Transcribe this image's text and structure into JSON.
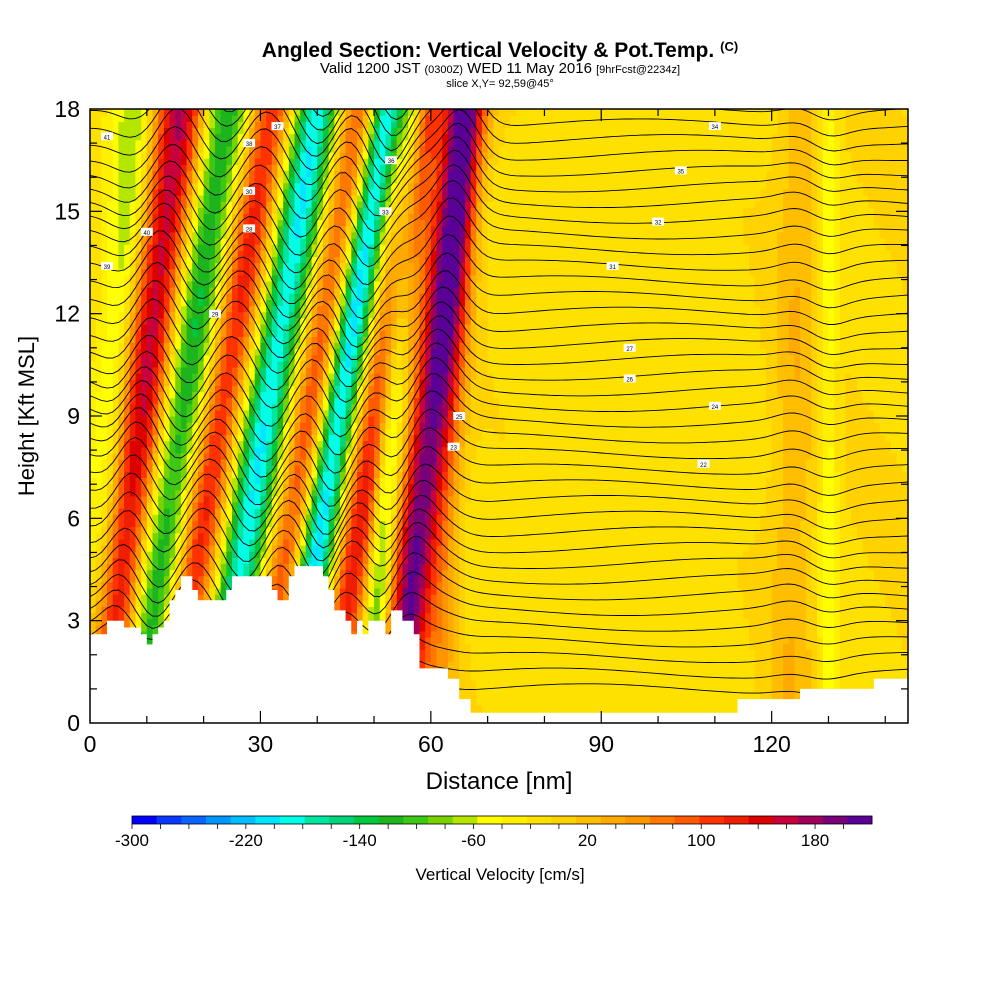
{
  "chart_data": {
    "type": "heatmap",
    "title": "Angled Section: Vertical Velocity & Pot.Temp.",
    "title_tag": "(C)",
    "subtitle": {
      "valid_prefix": "Valid 1200 JST",
      "utc": "(0300Z)",
      "date": "WED 11 May 2016",
      "forecast": "[9hrFcst@2234z]"
    },
    "slice_label": "slice X,Y= 92,59@45°",
    "xlabel": "Distance [nm]",
    "ylabel": "Height [Kft MSL]",
    "xlim": [
      0,
      144
    ],
    "ylim": [
      0,
      18
    ],
    "x_ticks": [
      "0",
      "30",
      "60",
      "90",
      "120"
    ],
    "x_tick_values": [
      0,
      30,
      60,
      90,
      120
    ],
    "y_ticks": [
      "0",
      "3",
      "6",
      "9",
      "12",
      "15",
      "18"
    ],
    "y_tick_values": [
      0,
      3,
      6,
      9,
      12,
      15,
      18
    ],
    "colorbar": {
      "label": "Vertical Velocity [cm/s]",
      "range": [
        -300,
        220
      ],
      "step": 20,
      "tick_labels": [
        "-300",
        "-220",
        "-140",
        "-60",
        "20",
        "100",
        "180"
      ],
      "tick_values": [
        -300,
        -220,
        -140,
        -60,
        20,
        100,
        180
      ],
      "colors": [
        "#0000ff",
        "#0a37ff",
        "#0a64ff",
        "#0096ff",
        "#00beff",
        "#00e6ff",
        "#00ffe6",
        "#00e6a0",
        "#00d278",
        "#00c83c",
        "#1eb41e",
        "#3cc814",
        "#78d200",
        "#b4e600",
        "#ffff00",
        "#fff000",
        "#ffe100",
        "#ffd200",
        "#ffbe00",
        "#ffaa00",
        "#ff9600",
        "#ff7800",
        "#ff5a00",
        "#ff3200",
        "#f01e00",
        "#dc0000",
        "#c8003c",
        "#a0005a",
        "#780078",
        "#5a0096"
      ]
    },
    "terrain_kft": [
      [
        0,
        2.6
      ],
      [
        3,
        2.6
      ],
      [
        3,
        3.0
      ],
      [
        6,
        3.0
      ],
      [
        6,
        2.8
      ],
      [
        9,
        2.8
      ],
      [
        9,
        2.6
      ],
      [
        10,
        2.6
      ],
      [
        10,
        2.3
      ],
      [
        11,
        2.3
      ],
      [
        11,
        2.6
      ],
      [
        12,
        2.6
      ],
      [
        12,
        2.8
      ],
      [
        13,
        2.8
      ],
      [
        13,
        3.0
      ],
      [
        14,
        3.0
      ],
      [
        14,
        3.6
      ],
      [
        15,
        3.6
      ],
      [
        15,
        3.9
      ],
      [
        16,
        3.9
      ],
      [
        16,
        4.3
      ],
      [
        18,
        4.3
      ],
      [
        18,
        3.9
      ],
      [
        19,
        3.9
      ],
      [
        19,
        3.6
      ],
      [
        24,
        3.6
      ],
      [
        24,
        3.9
      ],
      [
        25,
        3.9
      ],
      [
        25,
        4.3
      ],
      [
        32,
        4.3
      ],
      [
        32,
        3.9
      ],
      [
        33,
        3.9
      ],
      [
        33,
        3.6
      ],
      [
        35,
        3.6
      ],
      [
        35,
        4.3
      ],
      [
        36,
        4.3
      ],
      [
        36,
        4.6
      ],
      [
        41,
        4.6
      ],
      [
        41,
        4.3
      ],
      [
        42,
        4.3
      ],
      [
        42,
        3.9
      ],
      [
        43,
        3.9
      ],
      [
        43,
        3.3
      ],
      [
        45,
        3.3
      ],
      [
        45,
        3.0
      ],
      [
        46,
        3.0
      ],
      [
        46,
        2.6
      ],
      [
        47,
        2.6
      ],
      [
        47,
        3.0
      ],
      [
        48,
        3.0
      ],
      [
        48,
        2.6
      ],
      [
        49,
        2.6
      ],
      [
        49,
        3.0
      ],
      [
        52,
        3.0
      ],
      [
        52,
        2.6
      ],
      [
        53,
        2.6
      ],
      [
        53,
        3.3
      ],
      [
        55,
        3.3
      ],
      [
        55,
        3.0
      ],
      [
        57,
        3.0
      ],
      [
        57,
        2.6
      ],
      [
        58,
        2.6
      ],
      [
        58,
        1.6
      ],
      [
        63,
        1.6
      ],
      [
        63,
        1.3
      ],
      [
        65,
        1.3
      ],
      [
        65,
        0.7
      ],
      [
        67,
        0.7
      ],
      [
        67,
        0.3
      ],
      [
        114,
        0.3
      ],
      [
        114,
        0.7
      ],
      [
        125,
        0.7
      ],
      [
        125,
        1.0
      ],
      [
        138,
        1.0
      ],
      [
        138,
        1.3
      ],
      [
        144,
        1.3
      ]
    ],
    "updraft_bands": [
      {
        "x0": 2,
        "x1": 16,
        "w": 200,
        "width_nm": 3.2
      },
      {
        "x0": 14,
        "x1": 32,
        "w": 150,
        "width_nm": 2.6
      },
      {
        "x0": 30,
        "x1": 48,
        "w": 140,
        "width_nm": 2.5
      },
      {
        "x0": 42,
        "x1": 59,
        "w": 160,
        "width_nm": 2.4
      },
      {
        "x0": 54,
        "x1": 66,
        "w": 240,
        "width_nm": 2.6
      },
      {
        "x0": 61,
        "x1": 66,
        "w": 60,
        "width_nm": 2.0
      },
      {
        "x0": 123,
        "x1": 125,
        "w": 40,
        "width_nm": 3.0
      }
    ],
    "downdraft_bands": [
      {
        "x0": 0,
        "x1": 8,
        "w": -80,
        "width_nm": 2.5
      },
      {
        "x0": 8,
        "x1": 24,
        "w": -150,
        "width_nm": 3.0
      },
      {
        "x0": 22,
        "x1": 40,
        "w": -220,
        "width_nm": 2.8
      },
      {
        "x0": 35,
        "x1": 52,
        "w": -250,
        "width_nm": 2.4
      },
      {
        "x0": 49,
        "x1": 57,
        "w": -120,
        "width_nm": 1.6
      },
      {
        "x0": 130,
        "x1": 130,
        "w": -50,
        "width_nm": 1.2
      }
    ],
    "isentrope_labels": [
      "41",
      "40",
      "39",
      "38",
      "37",
      "36",
      "35",
      "34",
      "33",
      "32",
      "31",
      "30",
      "29",
      "28",
      "27",
      "26",
      "25",
      "24",
      "23",
      "22"
    ]
  }
}
